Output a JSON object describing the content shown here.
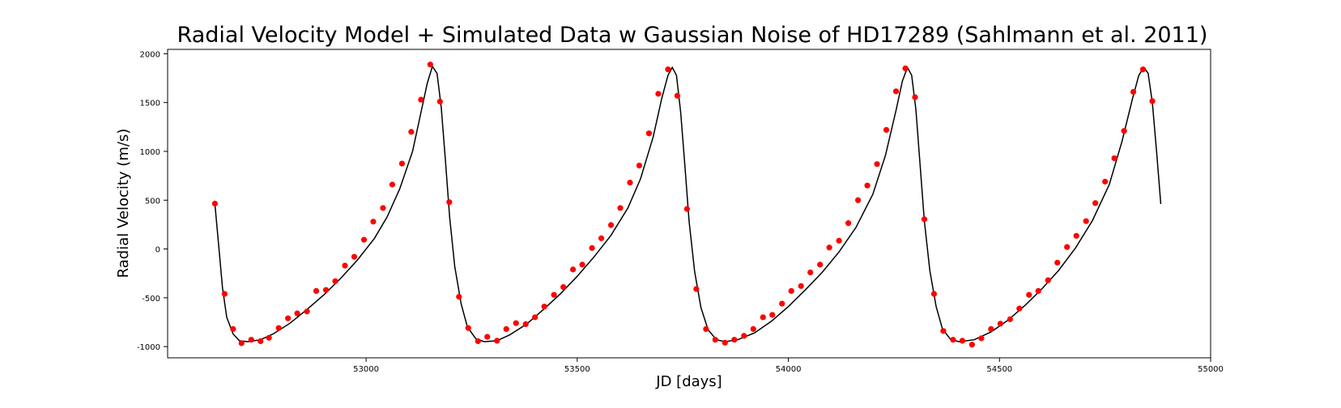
{
  "chart_data": {
    "type": "line",
    "title": "Radial Velocity Model + Simulated Data w Gaussian Noise of HD17289 (Sahlmann et al. 2011)",
    "xlabel": "JD [days]",
    "ylabel": "Radial Velocity (m/s)",
    "xlim": [
      52530,
      55000
    ],
    "ylim": [
      -1115,
      2045
    ],
    "x_ticks": [
      53000,
      53500,
      54000,
      54500,
      55000
    ],
    "y_ticks": [
      -1000,
      -500,
      0,
      500,
      1000,
      1500,
      2000
    ],
    "grid": false,
    "legend": "none",
    "colors": {
      "model": "#000000",
      "data": "#ff0000"
    },
    "series": [
      {
        "type": "line",
        "points": [
          [
            52642,
            460
          ],
          [
            52650,
            80
          ],
          [
            52660,
            -400
          ],
          [
            52670,
            -700
          ],
          [
            52685,
            -870
          ],
          [
            52700,
            -940
          ],
          [
            52720,
            -950
          ],
          [
            52750,
            -930
          ],
          [
            52780,
            -870
          ],
          [
            52820,
            -760
          ],
          [
            52860,
            -620
          ],
          [
            52900,
            -470
          ],
          [
            52940,
            -300
          ],
          [
            52980,
            -110
          ],
          [
            53020,
            110
          ],
          [
            53050,
            330
          ],
          [
            53080,
            620
          ],
          [
            53110,
            1000
          ],
          [
            53130,
            1400
          ],
          [
            53145,
            1700
          ],
          [
            53157,
            1870
          ],
          [
            53168,
            1800
          ],
          [
            53178,
            1450
          ],
          [
            53188,
            900
          ],
          [
            53198,
            320
          ],
          [
            53210,
            -180
          ],
          [
            53225,
            -560
          ],
          [
            53240,
            -800
          ],
          [
            53260,
            -920
          ],
          [
            53280,
            -950
          ],
          [
            53310,
            -940
          ],
          [
            53340,
            -880
          ],
          [
            53380,
            -770
          ],
          [
            53420,
            -620
          ],
          [
            53460,
            -460
          ],
          [
            53500,
            -280
          ],
          [
            53540,
            -80
          ],
          [
            53580,
            140
          ],
          [
            53620,
            420
          ],
          [
            53650,
            720
          ],
          [
            53680,
            1150
          ],
          [
            53700,
            1540
          ],
          [
            53715,
            1780
          ],
          [
            53725,
            1860
          ],
          [
            53735,
            1780
          ],
          [
            53745,
            1400
          ],
          [
            53755,
            850
          ],
          [
            53765,
            280
          ],
          [
            53778,
            -230
          ],
          [
            53793,
            -600
          ],
          [
            53810,
            -830
          ],
          [
            53830,
            -930
          ],
          [
            53850,
            -950
          ],
          [
            53880,
            -930
          ],
          [
            53920,
            -860
          ],
          [
            53960,
            -740
          ],
          [
            54000,
            -590
          ],
          [
            54040,
            -420
          ],
          [
            54080,
            -240
          ],
          [
            54120,
            -30
          ],
          [
            54160,
            220
          ],
          [
            54200,
            560
          ],
          [
            54230,
            960
          ],
          [
            54255,
            1420
          ],
          [
            54270,
            1720
          ],
          [
            54282,
            1860
          ],
          [
            54292,
            1780
          ],
          [
            54302,
            1430
          ],
          [
            54312,
            860
          ],
          [
            54322,
            290
          ],
          [
            54335,
            -220
          ],
          [
            54350,
            -590
          ],
          [
            54365,
            -820
          ],
          [
            54385,
            -930
          ],
          [
            54405,
            -950
          ],
          [
            54440,
            -930
          ],
          [
            54480,
            -850
          ],
          [
            54520,
            -730
          ],
          [
            54560,
            -580
          ],
          [
            54600,
            -410
          ],
          [
            54640,
            -220
          ],
          [
            54680,
            10
          ],
          [
            54720,
            290
          ],
          [
            54760,
            660
          ],
          [
            54790,
            1100
          ],
          [
            54815,
            1540
          ],
          [
            54830,
            1780
          ],
          [
            54842,
            1860
          ],
          [
            54852,
            1800
          ],
          [
            54862,
            1500
          ],
          [
            54872,
            1000
          ],
          [
            54882,
            460
          ]
        ]
      },
      {
        "type": "scatter",
        "points": [
          [
            52642,
            465
          ],
          [
            52665,
            -460
          ],
          [
            52685,
            -820
          ],
          [
            52705,
            -965
          ],
          [
            52728,
            -930
          ],
          [
            52750,
            -945
          ],
          [
            52770,
            -910
          ],
          [
            52793,
            -810
          ],
          [
            52815,
            -710
          ],
          [
            52837,
            -660
          ],
          [
            52860,
            -640
          ],
          [
            52882,
            -430
          ],
          [
            52905,
            -420
          ],
          [
            52927,
            -330
          ],
          [
            52950,
            -170
          ],
          [
            52972,
            -80
          ],
          [
            52995,
            95
          ],
          [
            53017,
            280
          ],
          [
            53040,
            420
          ],
          [
            53062,
            660
          ],
          [
            53085,
            875
          ],
          [
            53107,
            1200
          ],
          [
            53130,
            1530
          ],
          [
            53152,
            1890
          ],
          [
            53175,
            1510
          ],
          [
            53197,
            480
          ],
          [
            53220,
            -490
          ],
          [
            53242,
            -810
          ],
          [
            53265,
            -945
          ],
          [
            53287,
            -900
          ],
          [
            53310,
            -940
          ],
          [
            53332,
            -820
          ],
          [
            53355,
            -760
          ],
          [
            53378,
            -770
          ],
          [
            53400,
            -700
          ],
          [
            53422,
            -590
          ],
          [
            53445,
            -470
          ],
          [
            53467,
            -390
          ],
          [
            53490,
            -210
          ],
          [
            53512,
            -160
          ],
          [
            53535,
            10
          ],
          [
            53557,
            110
          ],
          [
            53580,
            245
          ],
          [
            53602,
            420
          ],
          [
            53625,
            680
          ],
          [
            53647,
            855
          ],
          [
            53670,
            1185
          ],
          [
            53692,
            1590
          ],
          [
            53715,
            1840
          ],
          [
            53737,
            1570
          ],
          [
            53760,
            410
          ],
          [
            53782,
            -410
          ],
          [
            53805,
            -820
          ],
          [
            53827,
            -930
          ],
          [
            53850,
            -960
          ],
          [
            53872,
            -930
          ],
          [
            53895,
            -890
          ],
          [
            53917,
            -820
          ],
          [
            53940,
            -700
          ],
          [
            53962,
            -675
          ],
          [
            53985,
            -560
          ],
          [
            54007,
            -430
          ],
          [
            54030,
            -380
          ],
          [
            54052,
            -240
          ],
          [
            54075,
            -160
          ],
          [
            54097,
            15
          ],
          [
            54120,
            85
          ],
          [
            54142,
            265
          ],
          [
            54165,
            500
          ],
          [
            54187,
            650
          ],
          [
            54210,
            870
          ],
          [
            54232,
            1220
          ],
          [
            54255,
            1615
          ],
          [
            54277,
            1850
          ],
          [
            54300,
            1555
          ],
          [
            54322,
            305
          ],
          [
            54345,
            -460
          ],
          [
            54367,
            -840
          ],
          [
            54390,
            -930
          ],
          [
            54412,
            -940
          ],
          [
            54435,
            -980
          ],
          [
            54457,
            -915
          ],
          [
            54480,
            -820
          ],
          [
            54502,
            -765
          ],
          [
            54525,
            -720
          ],
          [
            54547,
            -610
          ],
          [
            54570,
            -470
          ],
          [
            54592,
            -430
          ],
          [
            54615,
            -320
          ],
          [
            54637,
            -140
          ],
          [
            54660,
            20
          ],
          [
            54682,
            135
          ],
          [
            54705,
            285
          ],
          [
            54727,
            470
          ],
          [
            54750,
            690
          ],
          [
            54772,
            930
          ],
          [
            54795,
            1210
          ],
          [
            54817,
            1610
          ],
          [
            54840,
            1840
          ],
          [
            54862,
            1515
          ]
        ]
      }
    ]
  }
}
